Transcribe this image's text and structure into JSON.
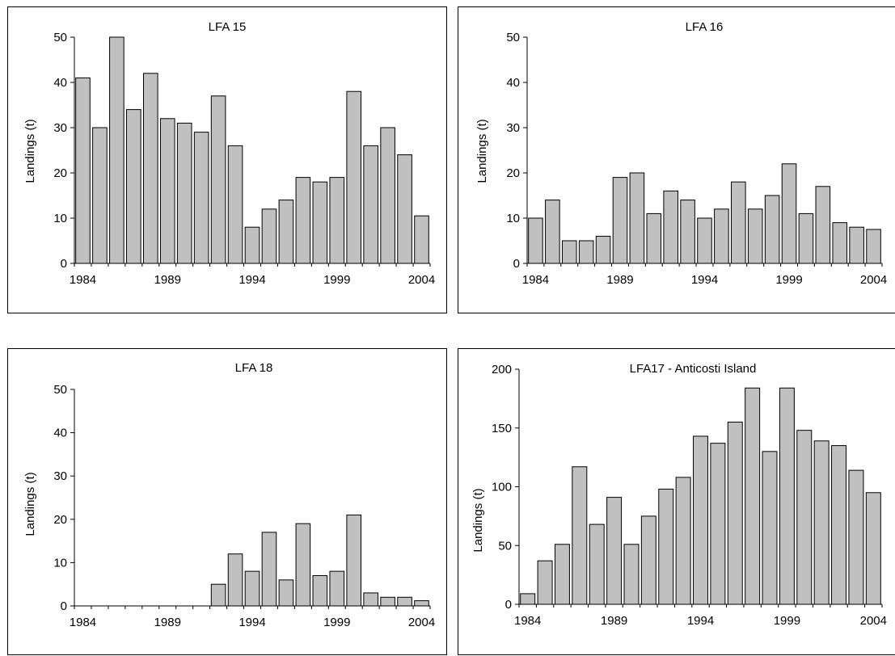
{
  "chart_data": [
    {
      "type": "bar",
      "title": "LFA 15",
      "ylabel": "Landings (t)",
      "xlabel": "",
      "ylim": [
        0,
        50
      ],
      "yticks": [
        0,
        10,
        20,
        30,
        40,
        50
      ],
      "xticks": [
        "1984",
        "1989",
        "1994",
        "1999",
        "2004"
      ],
      "categories": [
        "1984",
        "1985",
        "1986",
        "1987",
        "1988",
        "1989",
        "1990",
        "1991",
        "1992",
        "1993",
        "1994",
        "1995",
        "1996",
        "1997",
        "1998",
        "1999",
        "2000",
        "2001",
        "2002",
        "2003",
        "2004"
      ],
      "values": [
        41,
        30,
        50,
        34,
        42,
        32,
        31,
        29,
        37,
        26,
        8,
        12,
        14,
        19,
        18,
        19,
        38,
        26,
        30,
        24,
        10.5
      ],
      "bar_color": "#c0c0c0"
    },
    {
      "type": "bar",
      "title": "LFA 16",
      "ylabel": "Landings (t)",
      "xlabel": "",
      "ylim": [
        0,
        50
      ],
      "yticks": [
        0,
        10,
        20,
        30,
        40,
        50
      ],
      "xticks": [
        "1984",
        "1989",
        "1994",
        "1999",
        "2004"
      ],
      "categories": [
        "1984",
        "1985",
        "1986",
        "1987",
        "1988",
        "1989",
        "1990",
        "1991",
        "1992",
        "1993",
        "1994",
        "1995",
        "1996",
        "1997",
        "1998",
        "1999",
        "2000",
        "2001",
        "2002",
        "2003",
        "2004"
      ],
      "values": [
        10,
        14,
        5,
        5,
        6,
        19,
        20,
        11,
        16,
        14,
        10,
        12,
        18,
        12,
        15,
        22,
        11,
        17,
        9,
        8,
        7.5
      ],
      "bar_color": "#c0c0c0"
    },
    {
      "type": "bar",
      "title": "LFA 18",
      "ylabel": "Landings (t)",
      "xlabel": "",
      "ylim": [
        0,
        50
      ],
      "yticks": [
        0,
        10,
        20,
        30,
        40,
        50
      ],
      "xticks": [
        "1984",
        "1989",
        "1994",
        "1999",
        "2004"
      ],
      "categories": [
        "1984",
        "1985",
        "1986",
        "1987",
        "1988",
        "1989",
        "1990",
        "1991",
        "1992",
        "1993",
        "1994",
        "1995",
        "1996",
        "1997",
        "1998",
        "1999",
        "2000",
        "2001",
        "2002",
        "2003",
        "2004"
      ],
      "values": [
        0,
        0,
        0,
        0,
        0,
        0,
        0,
        0,
        5,
        12,
        8,
        17,
        6,
        19,
        7,
        8,
        21,
        3,
        2,
        2,
        1.2
      ],
      "bar_color": "#c0c0c0"
    },
    {
      "type": "bar",
      "title": "LFA17 - Anticosti Island",
      "ylabel": "Landings (t)",
      "xlabel": "",
      "ylim": [
        0,
        200
      ],
      "yticks": [
        0,
        50,
        100,
        150,
        200
      ],
      "xticks": [
        "1984",
        "1989",
        "1994",
        "1999",
        "2004"
      ],
      "categories": [
        "1984",
        "1985",
        "1986",
        "1987",
        "1988",
        "1989",
        "1990",
        "1991",
        "1992",
        "1993",
        "1994",
        "1995",
        "1996",
        "1997",
        "1998",
        "1999",
        "2000",
        "2001",
        "2002",
        "2003",
        "2004"
      ],
      "values": [
        9,
        37,
        51,
        117,
        68,
        91,
        51,
        75,
        98,
        108,
        143,
        137,
        155,
        184,
        130,
        184,
        148,
        139,
        135,
        114,
        95
      ],
      "bar_color": "#c0c0c0"
    }
  ]
}
